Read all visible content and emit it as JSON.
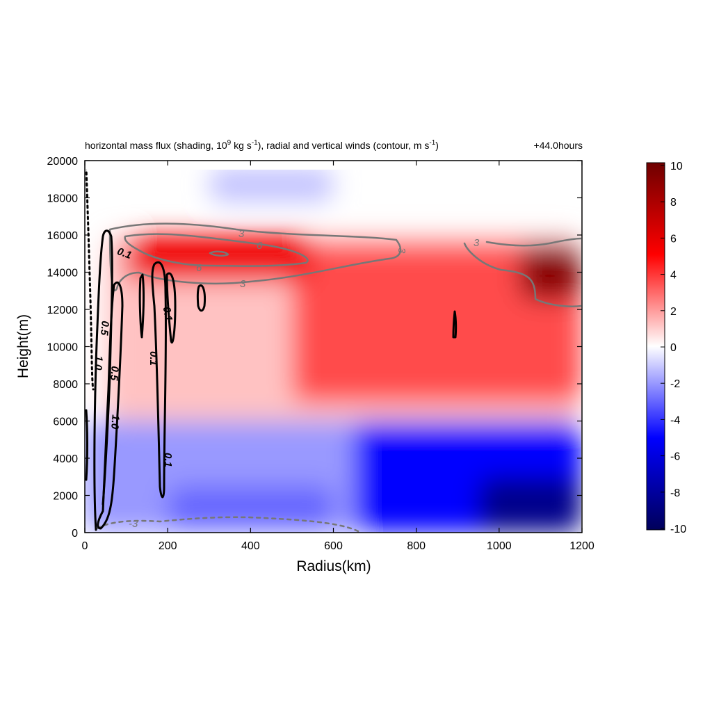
{
  "title": {
    "main": "horizontal mass flux (shading, 10",
    "sup1": "9",
    "mid": " kg s",
    "sup2": "-1",
    "mid2": "), radial and vertical winds (contour, m s",
    "sup3": "-1",
    "end": ")",
    "time": "+44.0hours"
  },
  "chart_data": {
    "type": "heatmap",
    "xlabel": "Radius(km)",
    "ylabel": "Height(m)",
    "xlim": [
      0,
      1200
    ],
    "ylim": [
      0,
      20000
    ],
    "x_ticks": [
      0,
      200,
      400,
      600,
      800,
      1000,
      1200
    ],
    "y_ticks": [
      0,
      2000,
      4000,
      6000,
      8000,
      10000,
      12000,
      14000,
      16000,
      18000,
      20000
    ],
    "colorbar": {
      "range": [
        -10,
        10
      ],
      "ticks": [
        10,
        8,
        6,
        4,
        2,
        0,
        -2,
        -4,
        -6,
        -8,
        -10
      ],
      "colors": [
        "#00005a",
        "#0000ff",
        "#ffffff",
        "#ff0000",
        "#6e0000"
      ]
    },
    "shading_regions": [
      {
        "x": [
          0,
          1200
        ],
        "y": [
          0,
          6000
        ],
        "value": -2
      },
      {
        "x": [
          650,
          1200
        ],
        "y": [
          0,
          6000
        ],
        "value": -5
      },
      {
        "x": [
          950,
          1200
        ],
        "y": [
          0,
          3000
        ],
        "value": -8.5
      },
      {
        "x": [
          200,
          600
        ],
        "y": [
          200,
          2500
        ],
        "value": -3
      },
      {
        "x": [
          50,
          1200
        ],
        "y": [
          6000,
          16000
        ],
        "value": 1.2
      },
      {
        "x": [
          500,
          1200
        ],
        "y": [
          7000,
          15500
        ],
        "value": 3.5
      },
      {
        "x": [
          100,
          550
        ],
        "y": [
          13500,
          16000
        ],
        "value": 5.5
      },
      {
        "x": [
          1050,
          1200
        ],
        "y": [
          12500,
          15500
        ],
        "value": 9
      },
      {
        "x": [
          300,
          600
        ],
        "y": [
          17800,
          19600
        ],
        "value": -1.2
      }
    ],
    "contour_labels": [
      "3",
      "6",
      "6",
      "3",
      "3",
      "3",
      "-3",
      "0.1",
      "0.1",
      "0.1",
      "0.1",
      "0.5",
      "0.5",
      "1.0",
      "1.0"
    ]
  },
  "colors": {
    "radial_contour": "#777777",
    "vertical_contour": "#000000"
  }
}
